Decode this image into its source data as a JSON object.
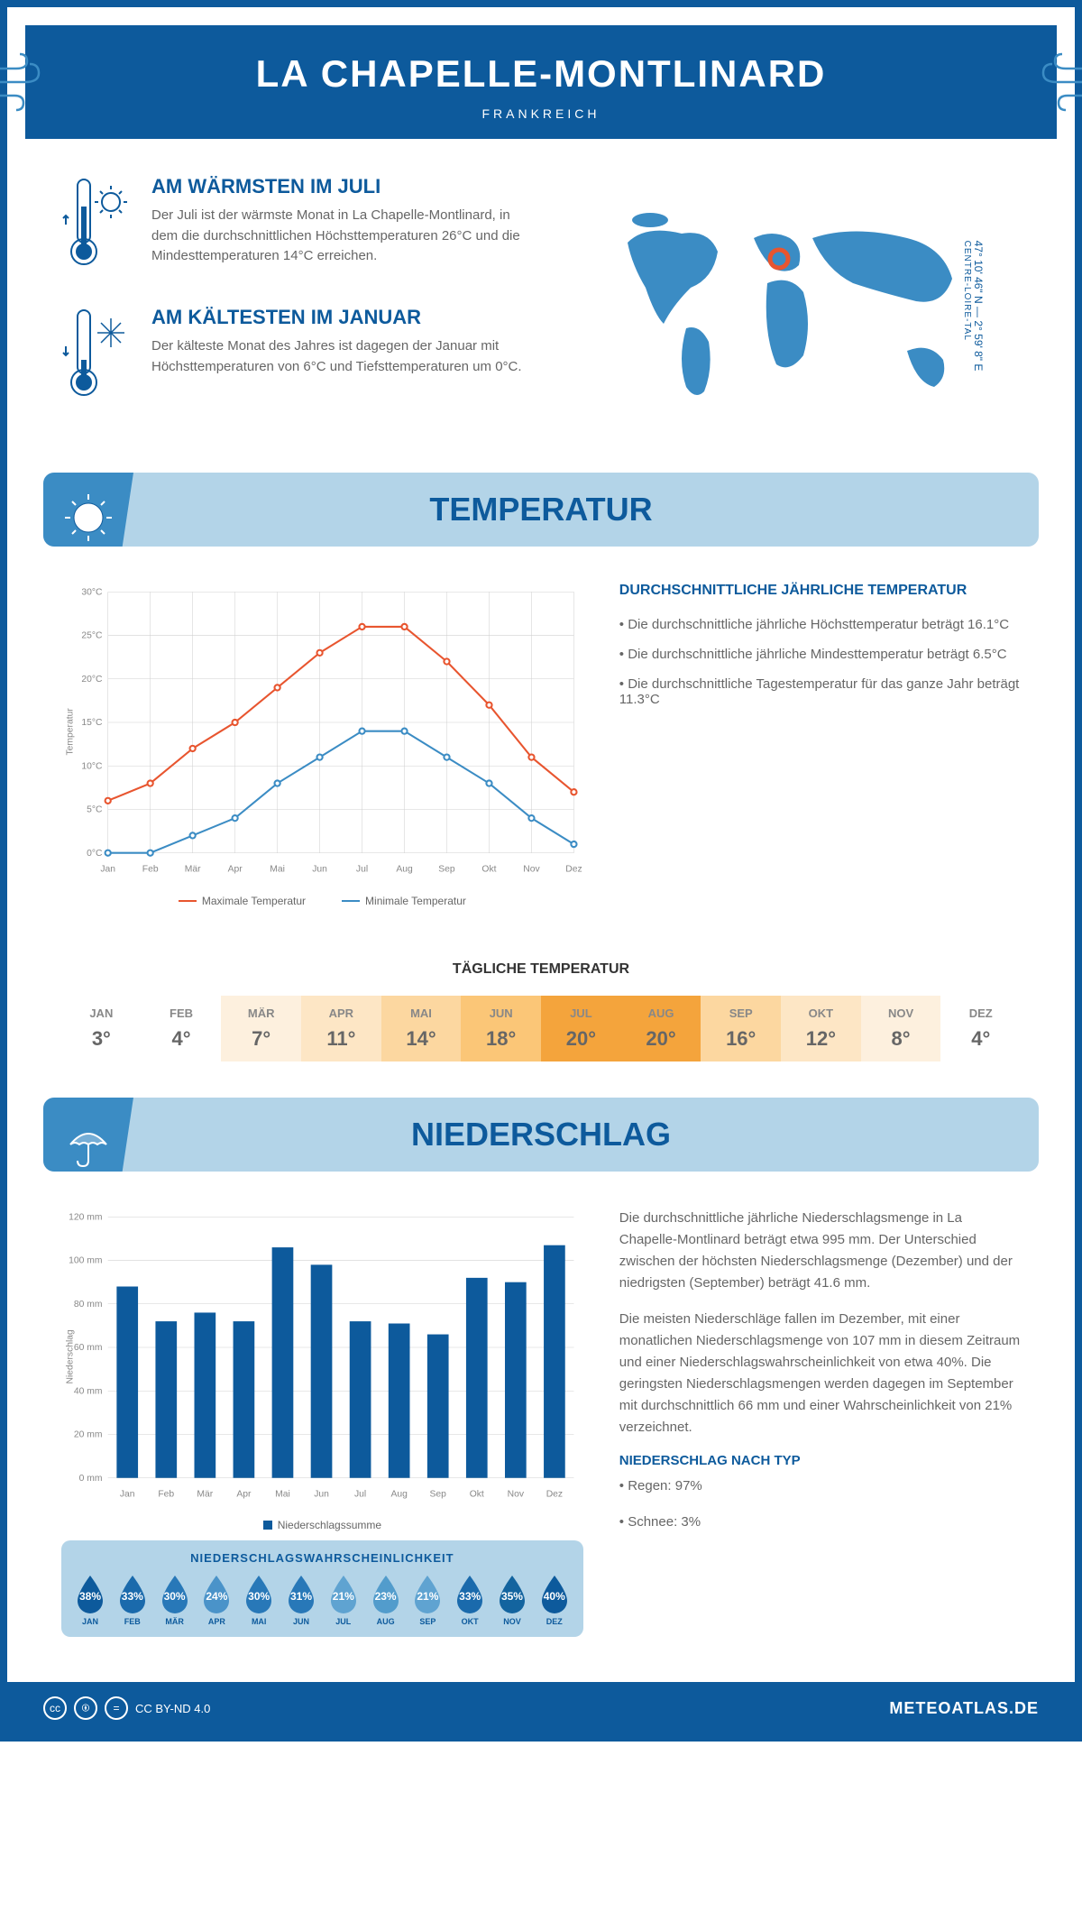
{
  "header": {
    "title": "LA CHAPELLE-MONTLINARD",
    "country": "FRANKREICH"
  },
  "coords": {
    "lat": "47° 10' 46\" N — 2° 59' 8\" E",
    "region": "CENTRE-LOIRE-TAL"
  },
  "warmest": {
    "title": "AM WÄRMSTEN IM JULI",
    "text": "Der Juli ist der wärmste Monat in La Chapelle-Montlinard, in dem die durchschnittlichen Höchsttemperaturen 26°C und die Mindesttemperaturen 14°C erreichen."
  },
  "coldest": {
    "title": "AM KÄLTESTEN IM JANUAR",
    "text": "Der kälteste Monat des Jahres ist dagegen der Januar mit Höchsttemperaturen von 6°C und Tiefsttemperaturen um 0°C."
  },
  "temperature": {
    "section_title": "TEMPERATUR",
    "notes_title": "DURCHSCHNITTLICHE JÄHRLICHE TEMPERATUR",
    "note1": "• Die durchschnittliche jährliche Höchsttemperatur beträgt 16.1°C",
    "note2": "• Die durchschnittliche jährliche Mindesttemperatur beträgt 6.5°C",
    "note3": "• Die durchschnittliche Tagestemperatur für das ganze Jahr beträgt 11.3°C",
    "chart": {
      "type": "line",
      "months": [
        "Jan",
        "Feb",
        "Mär",
        "Apr",
        "Mai",
        "Jun",
        "Jul",
        "Aug",
        "Sep",
        "Okt",
        "Nov",
        "Dez"
      ],
      "max_series": [
        6,
        8,
        12,
        15,
        19,
        23,
        26,
        26,
        22,
        17,
        11,
        7
      ],
      "min_series": [
        0,
        0,
        2,
        4,
        8,
        11,
        14,
        14,
        11,
        8,
        4,
        1
      ],
      "max_color": "#e8552f",
      "min_color": "#3b8cc4",
      "ylim": [
        0,
        30
      ],
      "ytick_step": 5,
      "y_label": "Temperatur",
      "grid_color": "#d0d0d0",
      "legend_max": "Maximale Temperatur",
      "legend_min": "Minimale Temperatur"
    },
    "daily": {
      "title": "TÄGLICHE TEMPERATUR",
      "months": [
        "JAN",
        "FEB",
        "MÄR",
        "APR",
        "MAI",
        "JUN",
        "JUL",
        "AUG",
        "SEP",
        "OKT",
        "NOV",
        "DEZ"
      ],
      "values": [
        "3°",
        "4°",
        "7°",
        "11°",
        "14°",
        "18°",
        "20°",
        "20°",
        "16°",
        "12°",
        "8°",
        "4°"
      ],
      "bg_colors": [
        "#ffffff",
        "#ffffff",
        "#fdf0de",
        "#fde6c5",
        "#fcd7a0",
        "#fbc677",
        "#f4a43c",
        "#f4a43c",
        "#fcd7a0",
        "#fde6c5",
        "#fdf0de",
        "#ffffff"
      ]
    }
  },
  "precipitation": {
    "section_title": "NIEDERSCHLAG",
    "text1": "Die durchschnittliche jährliche Niederschlagsmenge in La Chapelle-Montlinard beträgt etwa 995 mm. Der Unterschied zwischen der höchsten Niederschlagsmenge (Dezember) und der niedrigsten (September) beträgt 41.6 mm.",
    "text2": "Die meisten Niederschläge fallen im Dezember, mit einer monatlichen Niederschlagsmenge von 107 mm in diesem Zeitraum und einer Niederschlagswahrscheinlichkeit von etwa 40%. Die geringsten Niederschlagsmengen werden dagegen im September mit durchschnittlich 66 mm und einer Wahrscheinlichkeit von 21% verzeichnet.",
    "type_title": "NIEDERSCHLAG NACH TYP",
    "type1": "• Regen: 97%",
    "type2": "• Schnee: 3%",
    "chart": {
      "type": "bar",
      "months": [
        "Jan",
        "Feb",
        "Mär",
        "Apr",
        "Mai",
        "Jun",
        "Jul",
        "Aug",
        "Sep",
        "Okt",
        "Nov",
        "Dez"
      ],
      "values": [
        88,
        72,
        76,
        72,
        106,
        98,
        72,
        71,
        66,
        92,
        90,
        107
      ],
      "bar_color": "#0d5a9c",
      "ylim": [
        0,
        120
      ],
      "ytick_step": 20,
      "y_label": "Niederschlag",
      "legend": "Niederschlagssumme",
      "grid_color": "#d0d0d0",
      "bar_width": 0.55
    },
    "probability": {
      "title": "NIEDERSCHLAGSWAHRSCHEINLICHKEIT",
      "months": [
        "JAN",
        "FEB",
        "MÄR",
        "APR",
        "MAI",
        "JUN",
        "JUL",
        "AUG",
        "SEP",
        "OKT",
        "NOV",
        "DEZ"
      ],
      "values": [
        "38%",
        "33%",
        "30%",
        "24%",
        "30%",
        "31%",
        "21%",
        "23%",
        "21%",
        "33%",
        "35%",
        "40%"
      ],
      "colors": [
        "#0d5a9c",
        "#1a6aac",
        "#2878b8",
        "#4a93c9",
        "#2878b8",
        "#2878b8",
        "#5fa3d1",
        "#529ccc",
        "#5fa3d1",
        "#1a6aac",
        "#13649f",
        "#0d5a9c"
      ]
    }
  },
  "footer": {
    "license": "CC BY-ND 4.0",
    "brand": "METEOATLAS.DE"
  }
}
